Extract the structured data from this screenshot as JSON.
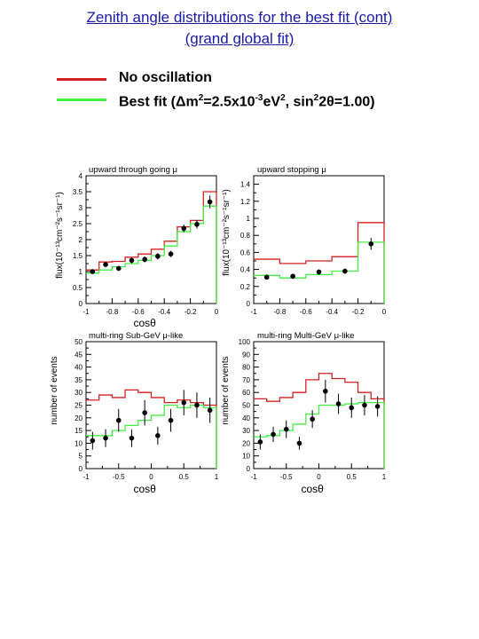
{
  "header": {
    "title_line1": "Zenith angle distributions for the best fit (cont)",
    "title_line2": "(grand global fit)"
  },
  "legend": {
    "no_osc": {
      "label": "No oscillation",
      "color": "#d42020"
    },
    "best_fit": {
      "label_prefix": "Best fit (",
      "delta": "Δ",
      "m": "m",
      "sup2": "2",
      "eq": "=2.5x10",
      "exp": "-3",
      "ev": "eV",
      "comma": ", sin",
      "two_theta": "2θ=1.00)",
      "color": "#44ee44"
    }
  },
  "chart_data": [
    {
      "type": "line",
      "title": "upward through going μ",
      "ylabel": "flux(10⁻¹³cm⁻²s⁻¹sr⁻¹)",
      "xlabel": "cosθ",
      "xlim": [
        -1,
        0
      ],
      "ylim": [
        0,
        4
      ],
      "xticks": [
        -1,
        -0.8,
        -0.6,
        -0.4,
        -0.2,
        0
      ],
      "xtick_labels": [
        "-1",
        "-0.8",
        "-0.6",
        "-0.4",
        "-0.2",
        "0"
      ],
      "yticks": [
        0,
        0.5,
        1,
        1.5,
        2,
        2.5,
        3,
        3.5,
        4
      ],
      "ytick_labels": [
        "0",
        "0.5",
        "1",
        "1.5",
        "2",
        "2.5",
        "3",
        "3.5",
        "4"
      ],
      "bin_edges": [
        -1,
        -0.9,
        -0.8,
        -0.7,
        -0.6,
        -0.5,
        -0.4,
        -0.3,
        -0.2,
        -0.1,
        0
      ],
      "no_osc": [
        1.05,
        1.3,
        1.32,
        1.45,
        1.55,
        1.7,
        1.95,
        2.4,
        2.6,
        3.5
      ],
      "best_fit": [
        0.95,
        1.05,
        1.15,
        1.25,
        1.35,
        1.5,
        1.8,
        2.25,
        2.5,
        3.05
      ],
      "points": {
        "x": [
          -0.95,
          -0.85,
          -0.75,
          -0.65,
          -0.55,
          -0.45,
          -0.35,
          -0.25,
          -0.15,
          -0.05
        ],
        "y": [
          1.0,
          1.22,
          1.1,
          1.35,
          1.38,
          1.48,
          1.55,
          2.35,
          2.48,
          3.18
        ],
        "err": [
          0.07,
          0.08,
          0.08,
          0.09,
          0.09,
          0.1,
          0.1,
          0.12,
          0.13,
          0.2
        ]
      }
    },
    {
      "type": "line",
      "title": "upward stopping μ",
      "ylabel": "flux(10⁻¹³cm⁻²s⁻¹sr⁻¹)",
      "xlabel": "",
      "xlim": [
        -1,
        0
      ],
      "ylim": [
        0,
        1.5
      ],
      "xticks": [
        -1,
        -0.8,
        -0.6,
        -0.4,
        -0.2,
        0
      ],
      "xtick_labels": [
        "-1",
        "-0.8",
        "-0.6",
        "-0.4",
        "-0.2",
        "0"
      ],
      "yticks": [
        0,
        0.2,
        0.4,
        0.6,
        0.8,
        1,
        1.2,
        1.4
      ],
      "ytick_labels": [
        "0",
        "0.2",
        "0.4",
        "0.6",
        "0.8",
        "1",
        "1.2",
        "1.4"
      ],
      "bin_edges": [
        -1,
        -0.8,
        -0.6,
        -0.4,
        -0.2,
        0
      ],
      "no_osc": [
        0.52,
        0.47,
        0.5,
        0.55,
        0.95
      ],
      "best_fit": [
        0.33,
        0.3,
        0.34,
        0.38,
        0.72
      ],
      "points": {
        "x": [
          -0.9,
          -0.7,
          -0.5,
          -0.3,
          -0.1
        ],
        "y": [
          0.31,
          0.32,
          0.37,
          0.38,
          0.7
        ],
        "err": [
          0.03,
          0.03,
          0.03,
          0.03,
          0.07
        ]
      }
    },
    {
      "type": "line",
      "title": "multi-ring Sub-GeV μ-like",
      "ylabel": "number of events",
      "xlabel": "cosθ",
      "xlim": [
        -1,
        1
      ],
      "ylim": [
        0,
        50
      ],
      "xticks": [
        -1,
        -0.5,
        0,
        0.5,
        1
      ],
      "xtick_labels": [
        "-1",
        "-0.5",
        "0",
        "0.5",
        "1"
      ],
      "yticks": [
        0,
        5,
        10,
        15,
        20,
        25,
        30,
        35,
        40,
        45,
        50
      ],
      "ytick_labels": [
        "0",
        "5",
        "10",
        "15",
        "20",
        "25",
        "30",
        "35",
        "40",
        "45",
        "50"
      ],
      "bin_edges": [
        -1,
        -0.8,
        -0.6,
        -0.4,
        -0.2,
        0,
        0.2,
        0.4,
        0.6,
        0.8,
        1
      ],
      "no_osc": [
        27,
        29,
        28,
        31,
        30,
        28,
        26,
        27,
        26,
        25
      ],
      "best_fit": [
        13,
        13,
        15,
        17,
        19,
        21,
        25,
        24,
        25,
        24
      ],
      "points": {
        "x": [
          -0.9,
          -0.7,
          -0.5,
          -0.3,
          -0.1,
          0.1,
          0.3,
          0.5,
          0.7,
          0.9
        ],
        "y": [
          11,
          12,
          19,
          12,
          22,
          13,
          19,
          26,
          25,
          23
        ],
        "err": [
          3.5,
          3.5,
          4.5,
          3.5,
          5,
          3.5,
          4.5,
          5,
          5,
          5
        ]
      }
    },
    {
      "type": "line",
      "title": "multi-ring Multi-GeV μ-like",
      "ylabel": "number of events",
      "xlabel": "cosθ",
      "xlim": [
        -1,
        1
      ],
      "ylim": [
        0,
        100
      ],
      "xticks": [
        -1,
        -0.5,
        0,
        0.5,
        1
      ],
      "xtick_labels": [
        "-1",
        "-0.5",
        "0",
        "0.5",
        "1"
      ],
      "yticks": [
        0,
        10,
        20,
        30,
        40,
        50,
        60,
        70,
        80,
        90,
        100
      ],
      "ytick_labels": [
        "0",
        "10",
        "20",
        "30",
        "40",
        "50",
        "60",
        "70",
        "80",
        "90",
        "100"
      ],
      "bin_edges": [
        -1,
        -0.8,
        -0.6,
        -0.4,
        -0.2,
        0,
        0.2,
        0.4,
        0.6,
        0.8,
        1
      ],
      "no_osc": [
        55,
        53,
        56,
        60,
        70,
        75,
        71,
        68,
        60,
        55
      ],
      "best_fit": [
        25,
        26,
        30,
        35,
        43,
        50,
        50,
        51,
        52,
        52
      ],
      "points": {
        "x": [
          -0.9,
          -0.7,
          -0.5,
          -0.3,
          -0.1,
          0.1,
          0.3,
          0.5,
          0.7,
          0.9
        ],
        "y": [
          21,
          27,
          31,
          20,
          39,
          61,
          51,
          48,
          50,
          49
        ],
        "err": [
          6,
          6,
          7,
          5,
          7,
          9,
          8,
          8,
          8,
          8
        ]
      }
    }
  ]
}
